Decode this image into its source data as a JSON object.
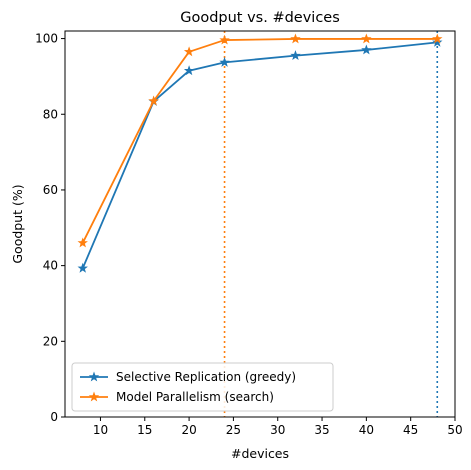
{
  "chart_data": {
    "type": "line",
    "title": "Goodput vs. #devices",
    "xlabel": "#devices",
    "ylabel": "Goodput (%)",
    "xlim": [
      6,
      50
    ],
    "ylim": [
      0,
      102
    ],
    "xticks": [
      10,
      15,
      20,
      25,
      30,
      35,
      40,
      45,
      50
    ],
    "yticks": [
      0,
      20,
      40,
      60,
      80,
      100
    ],
    "grid": false,
    "legend_position": "lower-left",
    "series": [
      {
        "name": "Selective Replication (greedy)",
        "color": "#1f77b4",
        "marker": "star",
        "x": [
          8,
          16,
          20,
          24,
          32,
          40,
          48
        ],
        "y": [
          39.3,
          83.4,
          91.5,
          93.7,
          95.5,
          97.0,
          99.0
        ]
      },
      {
        "name": "Model Parallelism (search)",
        "color": "#ff7f0e",
        "marker": "star",
        "x": [
          8,
          16,
          20,
          24,
          32,
          40,
          48
        ],
        "y": [
          46.0,
          83.5,
          96.5,
          99.6,
          99.9,
          99.9,
          99.9
        ]
      }
    ],
    "vlines": [
      {
        "x": 24,
        "color": "#ff7f0e",
        "style": "dotted"
      },
      {
        "x": 48,
        "color": "#1f77b4",
        "style": "dotted"
      }
    ]
  }
}
